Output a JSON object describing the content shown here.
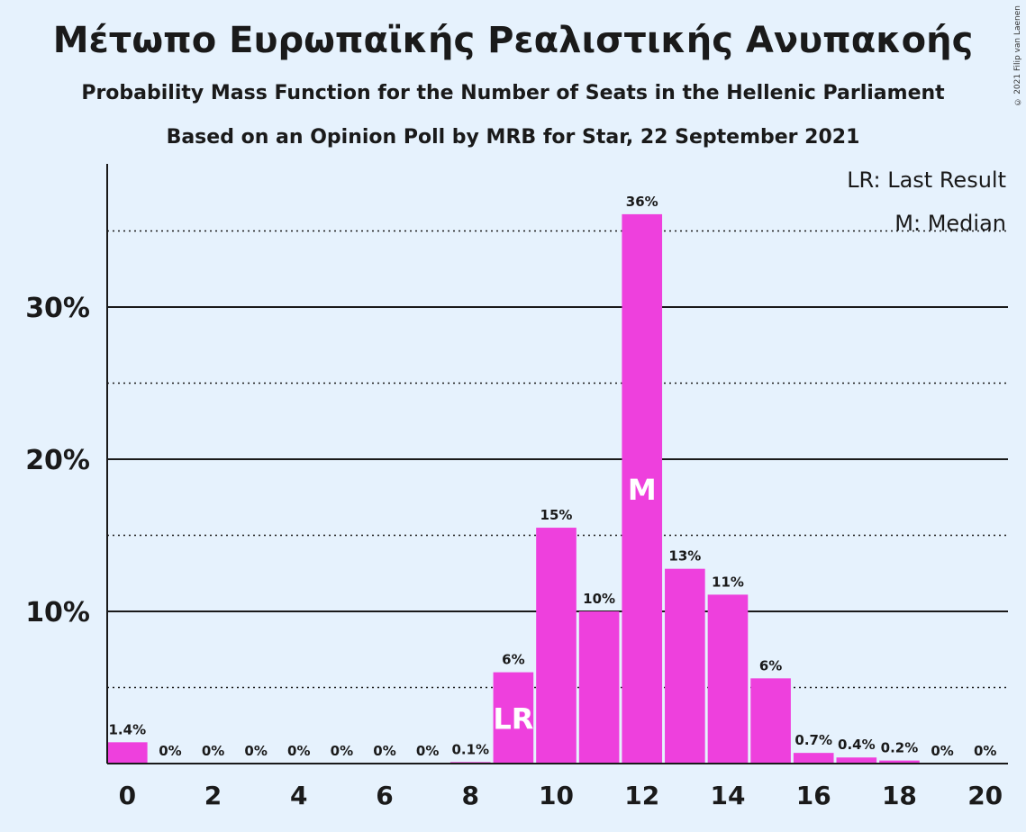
{
  "chart_data": {
    "type": "bar",
    "title": "Μέτωπο Ευρωπαϊκής Ρεαλιστικής Ανυπακοής",
    "subtitle": "Probability Mass Function for the Number of Seats in the Hellenic Parliament",
    "subtitle2": "Based on an Opinion Poll by MRB for Star, 22 September 2021",
    "copyright": "© 2021 Filip van Laenen",
    "categories": [
      0,
      1,
      2,
      3,
      4,
      5,
      6,
      7,
      8,
      9,
      10,
      11,
      12,
      13,
      14,
      15,
      16,
      17,
      18,
      19,
      20
    ],
    "values": [
      1.4,
      0,
      0,
      0,
      0,
      0,
      0,
      0,
      0.1,
      6,
      15.5,
      10,
      36.1,
      12.8,
      11.1,
      5.6,
      0.7,
      0.4,
      0.2,
      0,
      0
    ],
    "data_labels": [
      "1.4%",
      "0%",
      "0%",
      "0%",
      "0%",
      "0%",
      "0%",
      "0%",
      "0.1%",
      "6%",
      "15%",
      "10%",
      "36%",
      "13%",
      "11%",
      "6%",
      "0.7%",
      "0.4%",
      "0.2%",
      "0%",
      "0%"
    ],
    "x_tick_labels": [
      "0",
      "2",
      "4",
      "6",
      "8",
      "10",
      "12",
      "14",
      "16",
      "18",
      "20"
    ],
    "y_tick_labels": [
      "10%",
      "20%",
      "30%"
    ],
    "y_ticks": [
      10,
      20,
      30
    ],
    "y_minor_ticks": [
      5,
      15,
      25,
      35
    ],
    "ylim": [
      0,
      39
    ],
    "bar_color": "#ee40dd",
    "background": "#e6f2fd",
    "last_result_seat": 9,
    "median_seat": 12,
    "last_result_marker": "LR",
    "median_marker": "M",
    "legend": [
      "LR: Last Result",
      "M: Median"
    ],
    "legend_position": "top-right"
  }
}
